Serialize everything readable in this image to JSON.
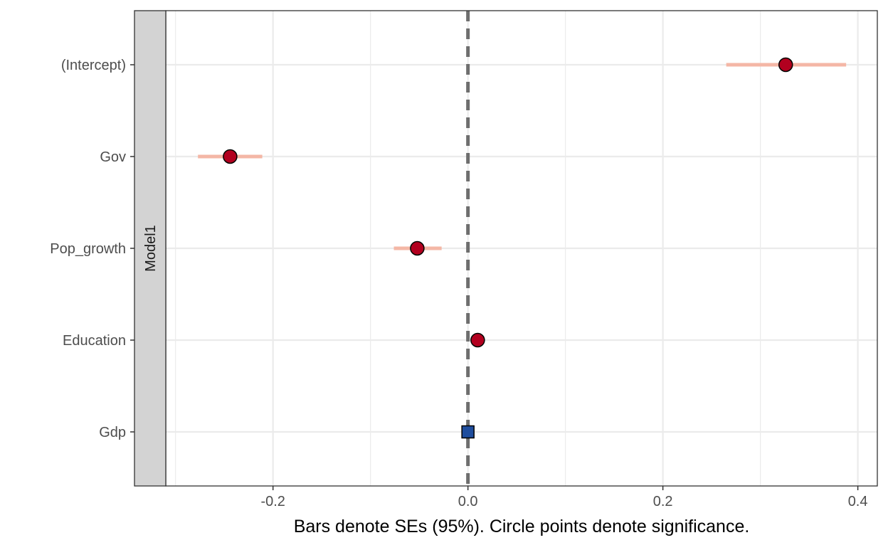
{
  "chart_data": {
    "type": "scatter",
    "title": "",
    "xlabel": "Bars denote SEs (95%). Circle points denote significance.",
    "ylabel": "",
    "facet_label": "Model1",
    "xlim": [
      -0.31,
      0.42
    ],
    "x_ticks": [
      -0.2,
      0.0,
      0.2,
      0.4
    ],
    "x_tick_labels": [
      "-0.2",
      "0.0",
      "0.2",
      "0.4"
    ],
    "reference_line": 0,
    "grid": true,
    "categories": [
      "(Intercept)",
      "Gov",
      "Pop_growth",
      "Education",
      "Gdp"
    ],
    "estimates": [
      {
        "term": "(Intercept)",
        "estimate": 0.326,
        "ci_low": 0.265,
        "ci_high": 0.388,
        "significant": true
      },
      {
        "term": "Gov",
        "estimate": -0.244,
        "ci_low": -0.277,
        "ci_high": -0.211,
        "significant": true
      },
      {
        "term": "Pop_growth",
        "estimate": -0.052,
        "ci_low": -0.076,
        "ci_high": -0.027,
        "significant": true
      },
      {
        "term": "Education",
        "estimate": 0.01,
        "ci_low": 0.008,
        "ci_high": 0.012,
        "significant": true
      },
      {
        "term": "Gdp",
        "estimate": 0.0,
        "ci_low": 0.0,
        "ci_high": 0.0,
        "significant": false
      }
    ],
    "colors": {
      "significant_point": "#B2001F",
      "nonsignificant_point": "#1F4E9E",
      "error_bar": "#F4B7A6",
      "reference_line": "#6E6E6E",
      "grid": "#EBEBEB",
      "strip_fill": "#D3D3D3",
      "panel_border": "#333333"
    }
  }
}
